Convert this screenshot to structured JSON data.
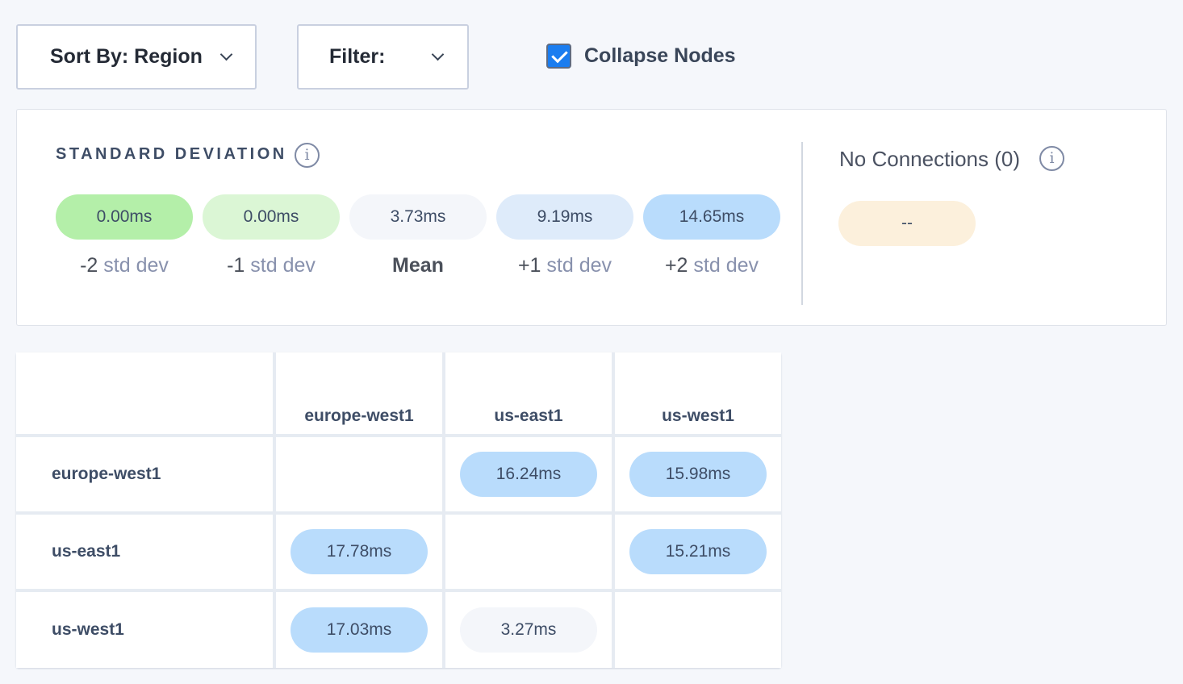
{
  "toolbar": {
    "sort_label": "Sort By: Region",
    "filter_label": "Filter:",
    "collapse_label": "Collapse Nodes",
    "collapse_checked": true
  },
  "std": {
    "title": "STANDARD DEVIATION",
    "pills": [
      {
        "value": "0.00ms",
        "prefix": "-2",
        "suffix": " std dev",
        "color": "#b4efa9"
      },
      {
        "value": "0.00ms",
        "prefix": "-1",
        "suffix": " std dev",
        "color": "#dbf6d5"
      },
      {
        "value": "3.73ms",
        "prefix": "Mean",
        "suffix": "",
        "color": "#f4f6fa"
      },
      {
        "value": "9.19ms",
        "prefix": "+1",
        "suffix": " std dev",
        "color": "#deebfa"
      },
      {
        "value": "14.65ms",
        "prefix": "+2",
        "suffix": " std dev",
        "color": "#b9dcfc"
      }
    ]
  },
  "no_connections": {
    "title": "No Connections (0)",
    "value": "--",
    "color": "#fcf0dc"
  },
  "matrix": {
    "columns": [
      "europe-west1",
      "us-east1",
      "us-west1"
    ],
    "rows": [
      {
        "label": "europe-west1",
        "cells": [
          "",
          "16.24ms",
          "15.98ms"
        ]
      },
      {
        "label": "us-east1",
        "cells": [
          "17.78ms",
          "",
          "15.21ms"
        ]
      },
      {
        "label": "us-west1",
        "cells": [
          "17.03ms",
          "3.27ms",
          ""
        ]
      }
    ],
    "cell_colors": [
      [
        "",
        "#b9dcfc",
        "#b9dcfc"
      ],
      [
        "#b9dcfc",
        "",
        "#b9dcfc"
      ],
      [
        "#b9dcfc",
        "#f4f6fa",
        ""
      ]
    ]
  }
}
